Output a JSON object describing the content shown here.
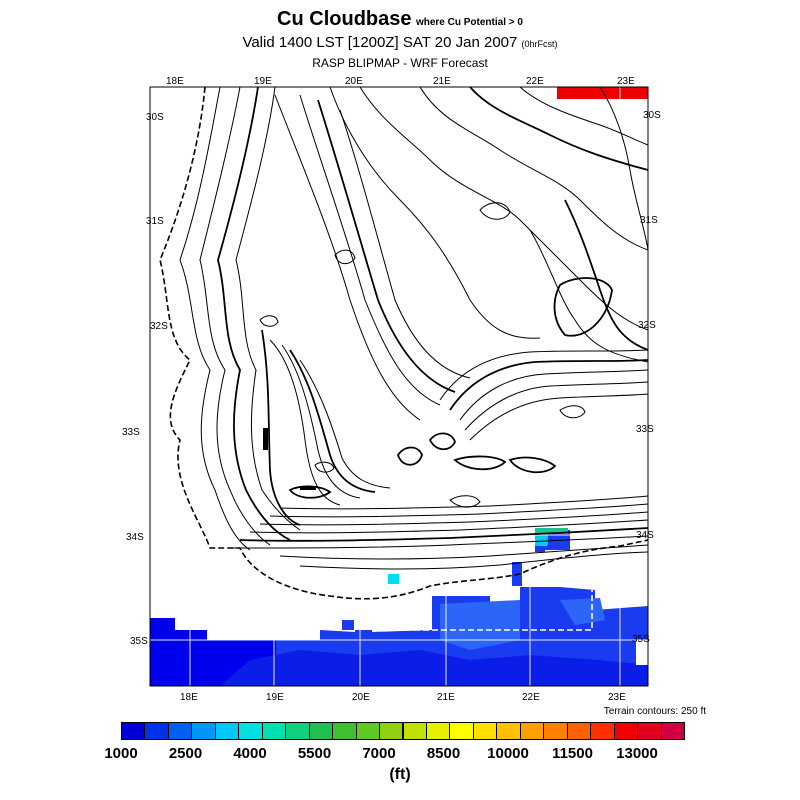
{
  "header": {
    "title": "Cu Cloudbase",
    "title_note": "where Cu Potential > 0",
    "valid": "Valid 1400 LST [1200Z] SAT 20 Jan 2007",
    "valid_note": "(0hrFcst)",
    "subtitle": "RASP BLIPMAP - WRF Forecast"
  },
  "map": {
    "lon_labels_top": [
      "18E",
      "19E",
      "20E",
      "21E",
      "22E",
      "23E"
    ],
    "lon_labels_bottom": [
      "18E",
      "19E",
      "20E",
      "21E",
      "22E",
      "23E"
    ],
    "lat_labels_left": [
      "30S",
      "31S",
      "32S",
      "33S",
      "34S",
      "35S"
    ],
    "lat_labels_right": [
      "30S",
      "31S",
      "32S",
      "33S",
      "34S",
      "35S"
    ],
    "terrain_note": "Terrain contours: 250 ft",
    "colors": {
      "deep_blue": "#0000ee",
      "blue": "#1a3cf0",
      "mid_blue": "#2060f8",
      "light_blue": "#3080ff",
      "cyan": "#00ddee",
      "teal": "#20c090",
      "red": "#ee0000"
    }
  },
  "colorbar": {
    "labels": [
      "1000",
      "2500",
      "4000",
      "5500",
      "7000",
      "8500",
      "10000",
      "11500",
      "13000"
    ],
    "colors": [
      "#0000d8",
      "#0030e8",
      "#0060f0",
      "#0098f8",
      "#00c8f8",
      "#00e0e0",
      "#00e0b0",
      "#10d080",
      "#20c050",
      "#40c030",
      "#60c820",
      "#90d010",
      "#c0e000",
      "#e8f000",
      "#ffff00",
      "#ffe000",
      "#ffc000",
      "#ffa000",
      "#ff8000",
      "#ff6000",
      "#ff3000",
      "#f00000",
      "#e00020",
      "#d00040"
    ],
    "units": "(ft)"
  }
}
